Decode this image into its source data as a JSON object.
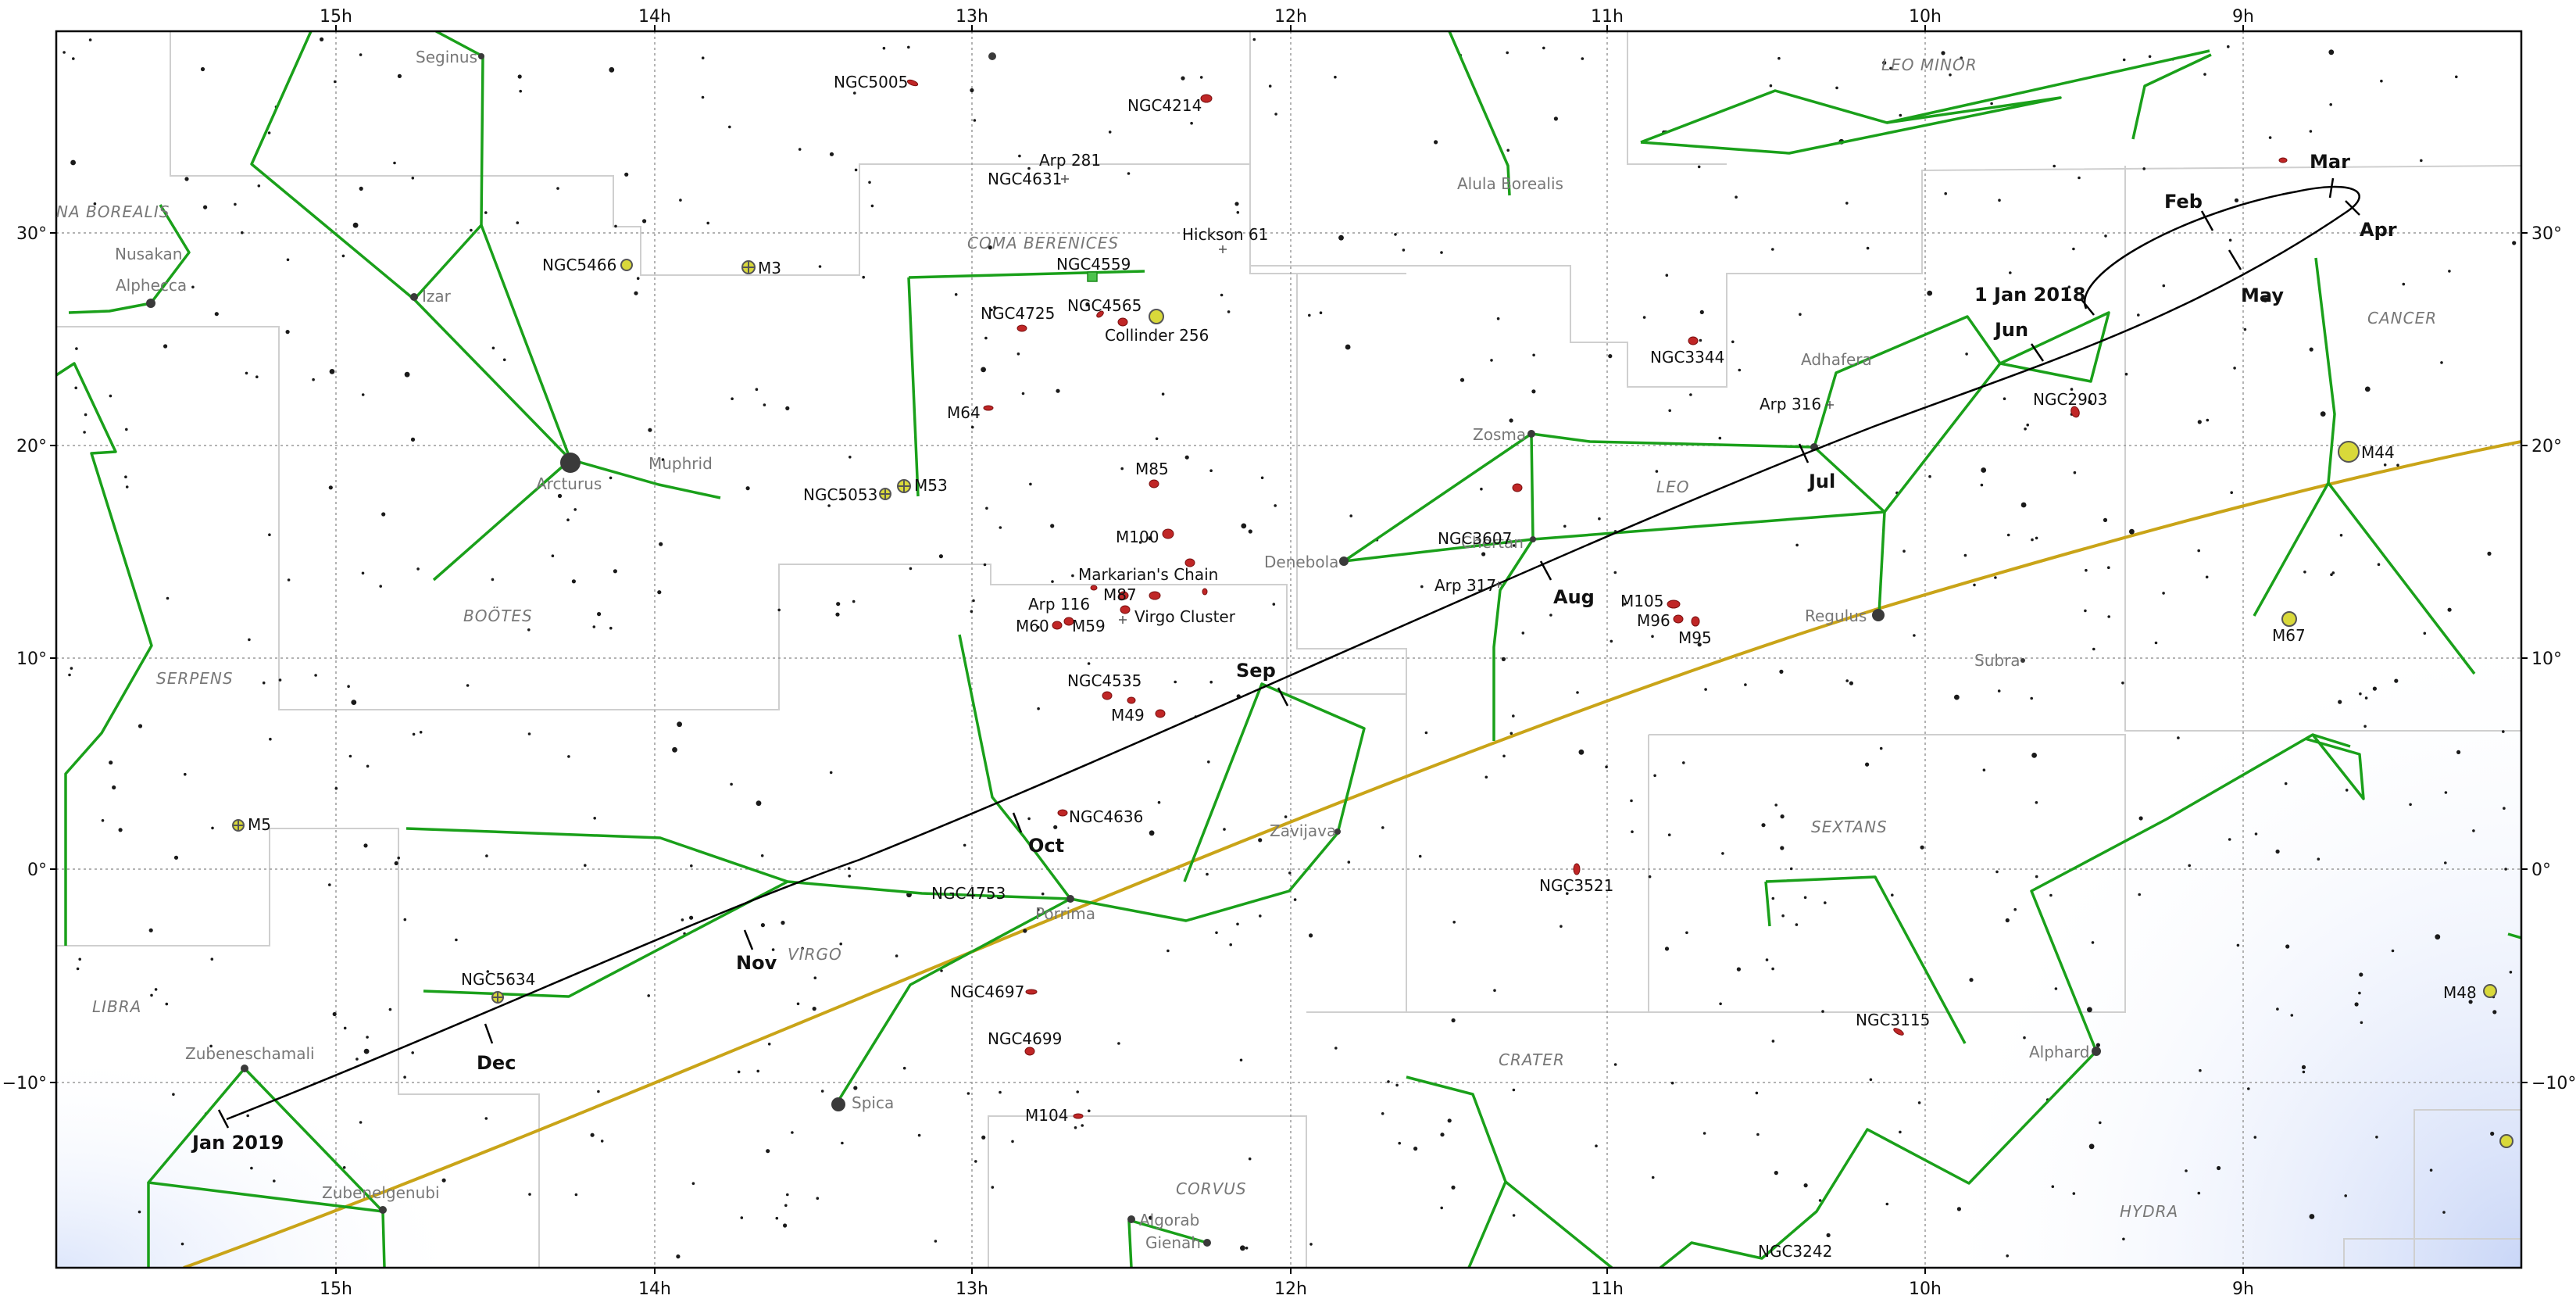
{
  "ra_labels": [
    "15h",
    "14h",
    "13h",
    "12h",
    "11h",
    "10h",
    "9h"
  ],
  "dec_labels": [
    "30°",
    "20°",
    "10°",
    "0°",
    "−10°"
  ],
  "constellation_names": [
    "NA BOREALIS",
    "COMA BERENICES",
    "LEO MINOR",
    "CANCER",
    "LEO",
    "BOÖTES",
    "SERPENS",
    "SEXTANS",
    "VIRGO",
    "LIBRA",
    "CRATER",
    "CORVUS",
    "HYDRA"
  ],
  "star_names": [
    "Seginus",
    "Nusakan",
    "Alphecca",
    "Izar",
    "Arcturus",
    "Muphrid",
    "Alula Borealis",
    "Adhafera",
    "Zosma",
    "Chertan",
    "Denebola",
    "Regulus",
    "Subra",
    "Zavijava",
    "Porrima",
    "Spica",
    "Zubeneschamali",
    "Zubenelgenubi",
    "Algorab",
    "Gienah",
    "Alphard"
  ],
  "deep_sky_objects": [
    "NGC5005",
    "NGC4214",
    "Arp 281",
    "NGC4631",
    "Hickson 61",
    "NGC5466",
    "M3",
    "NGC4559",
    "NGC4725",
    "NGC4565",
    "Collinder 256",
    "NGC3344",
    "Arp 316",
    "NGC2903",
    "M64",
    "M44",
    "M85",
    "NGC5053",
    "M53",
    "NGC3607",
    "M100",
    "Markarian's Chain",
    "M87",
    "Arp 317",
    "Arp 116",
    "M60",
    "M59",
    "Virgo Cluster",
    "M105",
    "M96",
    "M95",
    "M67",
    "NGC4535",
    "M49",
    "M5",
    "NGC4636",
    "NGC3521",
    "NGC4753",
    "NGC5634",
    "NGC4697",
    "NGC3115",
    "M48",
    "NGC4699",
    "M104",
    "NGC3242"
  ],
  "path_labels": [
    "1 Jan 2018",
    "Feb",
    "Mar",
    "Apr",
    "May",
    "Jun",
    "Jul",
    "Aug",
    "Sep",
    "Oct",
    "Nov",
    "Dec",
    "Jan 2019"
  ],
  "colors": {
    "constellation_lines": "#1aa01a",
    "ecliptic": "#c9a418",
    "path": "#000000",
    "grid": "#9a9a9a",
    "boundaries": "#cfcfcf",
    "galaxy": "#c02626",
    "cluster": "#d9d93a",
    "milky_way": "#c9d6f7"
  }
}
